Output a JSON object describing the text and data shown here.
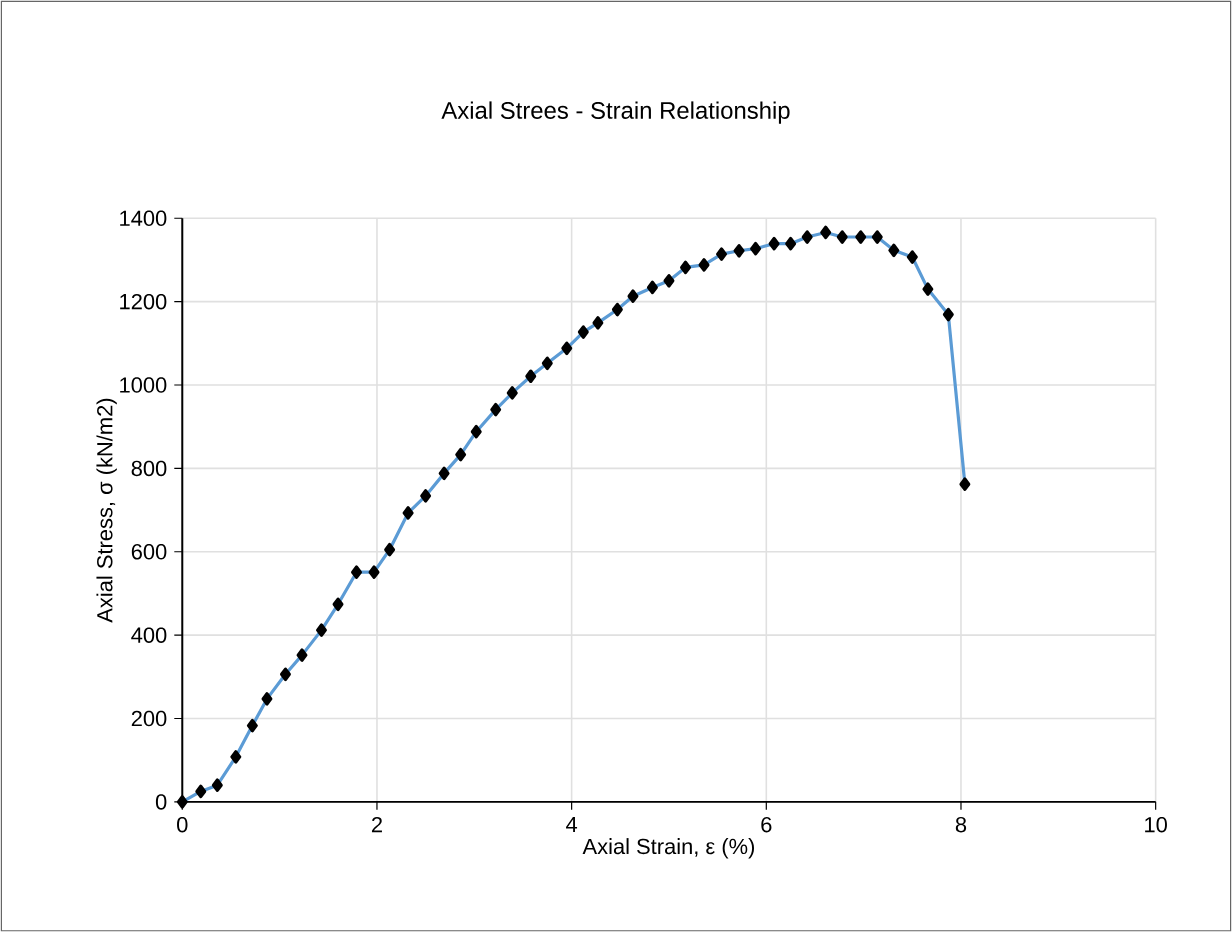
{
  "chart_data": {
    "type": "line",
    "title": "Axial Strees - Strain Relationship",
    "xlabel": "Axial Strain, ε (%)",
    "ylabel": "Axial Stress, σ (kN/m2)",
    "series": [
      {
        "color": "#5b9bd5",
        "x": [
          0,
          0.19,
          0.36,
          0.55,
          0.72,
          0.87,
          1.06,
          1.23,
          1.43,
          1.6,
          1.79,
          1.97,
          2.13,
          2.32,
          2.5,
          2.69,
          2.86,
          3.02,
          3.22,
          3.39,
          3.58,
          3.75,
          3.95,
          4.12,
          4.27,
          4.47,
          4.63,
          4.83,
          5.0,
          5.17,
          5.36,
          5.54,
          5.72,
          5.89,
          6.08,
          6.25,
          6.42,
          6.61,
          6.78,
          6.97,
          7.14,
          7.31,
          7.5,
          7.66,
          7.87,
          8.04
        ],
        "values": [
          0,
          25,
          40,
          108,
          183,
          247,
          306,
          352,
          412,
          474,
          551,
          551,
          605,
          693,
          734,
          788,
          833,
          888,
          941,
          981,
          1021,
          1052,
          1088,
          1127,
          1149,
          1181,
          1213,
          1234,
          1250,
          1282,
          1288,
          1314,
          1322,
          1327,
          1339,
          1339,
          1355,
          1366,
          1355,
          1355,
          1355,
          1323,
          1307,
          1230,
          1169,
          762
        ]
      }
    ],
    "xlim": [
      0,
      10
    ],
    "ylim": [
      0,
      1400
    ],
    "xticks": [
      0,
      2,
      4,
      6,
      8,
      10
    ],
    "yticks": [
      0,
      200,
      400,
      600,
      800,
      1000,
      1200,
      1400
    ],
    "grid": true,
    "marker": "diamond",
    "line_style": "solid"
  }
}
